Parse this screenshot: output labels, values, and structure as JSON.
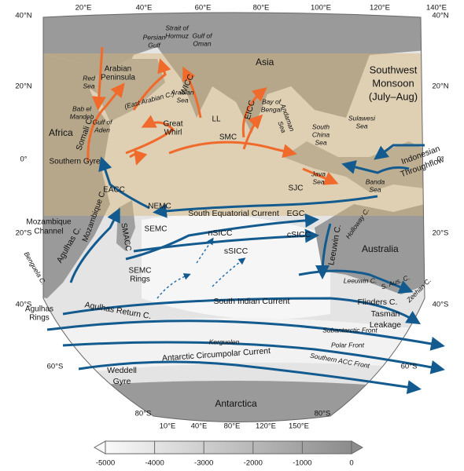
{
  "grid_labels": {
    "top": [
      "20°E",
      "40°E",
      "60°E",
      "80°E",
      "100°E",
      "120°E",
      "140°E"
    ],
    "left": [
      "40°N",
      "20°N",
      "0°",
      "20°S",
      "40°S",
      "60°S"
    ],
    "right": [
      "40°N",
      "20°N",
      "0°",
      "20°S",
      "40°S",
      "60°S",
      "80°S"
    ],
    "bottom_left": "80°S",
    "bottom": [
      "10°E",
      "40°E",
      "80°E",
      "120°E",
      "150°E"
    ]
  },
  "monsoon": [
    "Southwest",
    "Monsoon",
    "(July–Aug)"
  ],
  "regions": [
    "Asia",
    "Africa",
    "Australia",
    "Antarctica",
    "Arabian",
    "Peninsula",
    "Persian",
    "Gulf",
    "Strait of",
    "Hormuz",
    "Gulf of",
    "Oman",
    "Red",
    "Sea",
    "Bab el",
    "Mandeb",
    "Gulf of",
    "Aden",
    "(East Arabian C.)",
    "Arabian",
    "Sea",
    "Great",
    "Whirl",
    "Bay of",
    "Bengal",
    "Andaman",
    "Sea",
    "South",
    "China",
    "Sea",
    "Sulawesi",
    "Sea",
    "Java",
    "Sea",
    "Banda",
    "Sea",
    "Mozambique",
    "Channel",
    "Kerguelen",
    "Southern Gyre"
  ],
  "currents": [
    "Somali C.",
    "WICC",
    "EICC",
    "LL",
    "SMC",
    "EACC",
    "NEMC",
    "South Equatorial Current",
    "EGC",
    "Indonesian",
    "Throughflow",
    "SJC",
    "Holloway C.",
    "SEMC",
    "SMACC",
    "Mozambique C.",
    "nSICC",
    "cSICC",
    "sSICC",
    "Leeuwin C.",
    "SEMC",
    "Rings",
    "Agulhas C.",
    "Benguela C.",
    "Agulhas",
    "Rings",
    "Agulhas Return C.",
    "South Indian Current",
    "Leeuwin C.",
    "S. Aus. C.",
    "Zeehan C.",
    "Flinders C.",
    "Tasman",
    "Leakage",
    "Subantarctic Front",
    "Polar Front",
    "Antarctic Circumpolar Current",
    "Southern ACC Front",
    "Weddell",
    "Gyre"
  ],
  "colorbar": [
    "-5000",
    "-4000",
    "-3000",
    "-2000",
    "-1000",
    "0"
  ]
}
